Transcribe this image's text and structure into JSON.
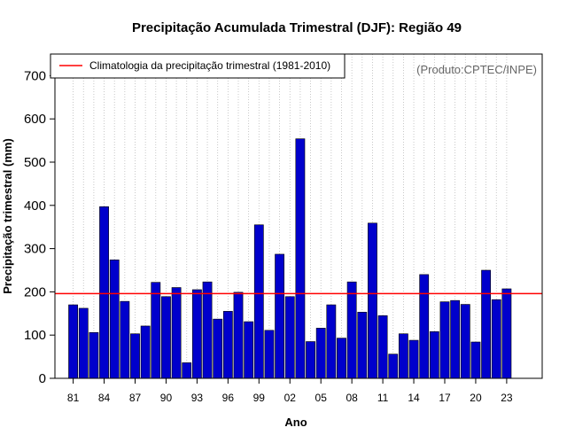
{
  "chart_data": {
    "type": "bar",
    "title": "Precipitação Acumulada Trimestral (DJF): Região 49",
    "xlabel": "Ano",
    "ylabel": "Precipitação trimestral (mm)",
    "credit": "(Produto:CPTEC/INPE)",
    "ylim": [
      0,
      750
    ],
    "yticks": [
      0,
      100,
      200,
      300,
      400,
      500,
      600,
      700
    ],
    "categories": [
      "81",
      "82",
      "83",
      "84",
      "85",
      "86",
      "87",
      "88",
      "89",
      "90",
      "91",
      "92",
      "93",
      "94",
      "95",
      "96",
      "97",
      "98",
      "99",
      "00",
      "01",
      "02",
      "03",
      "04",
      "05",
      "06",
      "07",
      "08",
      "09",
      "10",
      "11",
      "12",
      "13",
      "14",
      "15",
      "16",
      "17",
      "18",
      "19",
      "20",
      "21",
      "22",
      "23"
    ],
    "xtick_labels": [
      "81",
      "84",
      "87",
      "90",
      "93",
      "96",
      "99",
      "02",
      "05",
      "08",
      "11",
      "14",
      "17",
      "20",
      "23"
    ],
    "values": [
      170,
      162,
      106,
      397,
      274,
      178,
      103,
      121,
      222,
      189,
      210,
      36,
      205,
      223,
      137,
      155,
      199,
      131,
      355,
      111,
      287,
      189,
      554,
      85,
      116,
      170,
      93,
      223,
      153,
      359,
      145,
      56,
      103,
      88,
      240,
      108,
      177,
      180,
      171,
      84,
      250,
      182,
      207
    ],
    "climatology": 196,
    "legend": {
      "label": "Climatologia da precipitação trimestral (1981-2010)",
      "position": "top-left"
    },
    "colors": {
      "bar": "#0000cc",
      "bar_edge": "#000000",
      "climatology": "#ff0000",
      "grid": "#bbbbbb"
    }
  }
}
